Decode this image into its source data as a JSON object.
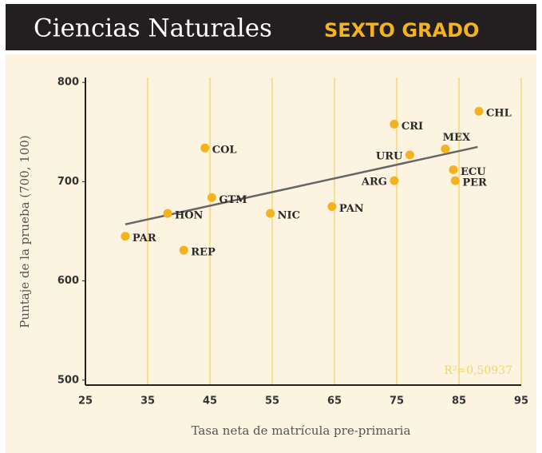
{
  "chart_data": {
    "type": "scatter",
    "title": "Ciencias Naturales",
    "subtitle": "SEXTO GRADO",
    "x_label": "Tasa neta de matrícula pre-primaria",
    "y_label": "Puntaje de la prueba (700, 100)",
    "annotation": "R²=0,50937",
    "labels": [
      "PAR",
      "REP",
      "HON",
      "GTM",
      "COL",
      "NIC",
      "PAN",
      "ARG",
      "CRI",
      "URU",
      "MEX",
      "ECU",
      "PER",
      "CHL"
    ],
    "x": [
      31.4,
      40.8,
      38.2,
      45.3,
      44.2,
      54.7,
      64.6,
      74.6,
      74.6,
      77.1,
      82.8,
      84.1,
      84.4,
      88.2
    ],
    "values": [
      645,
      631,
      668,
      684,
      734,
      668,
      675,
      701,
      758,
      727,
      733,
      712,
      701,
      771
    ],
    "color": "#f5b21f",
    "trendline": {
      "x": [
        31.4,
        88
      ],
      "values": [
        657,
        735
      ],
      "color": "#666666"
    },
    "xlim": [
      25,
      95
    ],
    "xticks": [
      25,
      35,
      45,
      55,
      65,
      75,
      85,
      95
    ],
    "ylim": [
      495,
      805
    ],
    "yticks": [
      500,
      600,
      700,
      800
    ],
    "grid": true,
    "grid_color": "#efd568"
  }
}
